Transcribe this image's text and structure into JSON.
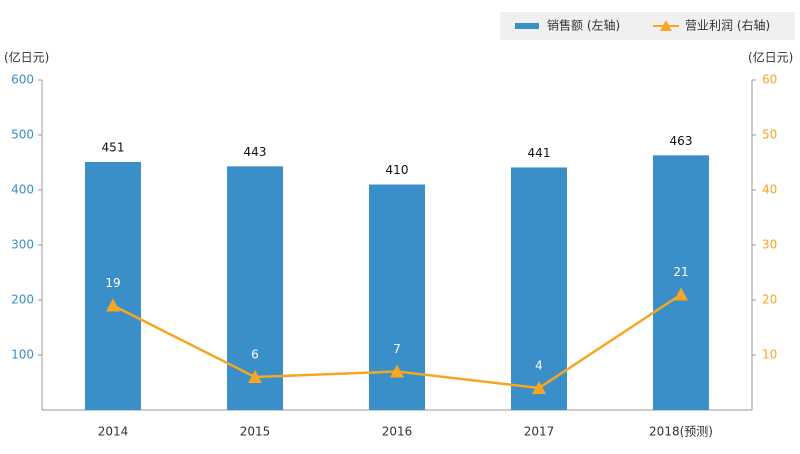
{
  "chart_data": {
    "type": "combo",
    "categories": [
      "2014",
      "2015",
      "2016",
      "2017",
      "2018(预测)"
    ],
    "series": [
      {
        "name": "销售额 (左轴)",
        "type": "bar",
        "color": "#3a8fc8",
        "values": [
          451,
          443,
          410,
          441,
          463
        ]
      },
      {
        "name": "营业利润 (右轴)",
        "type": "line",
        "axis": "y2",
        "color": "#f5a623",
        "values": [
          19,
          6,
          7,
          4,
          21
        ]
      }
    ],
    "ylabel": "(亿日元)",
    "y2label": "(亿日元)",
    "ylim": [
      0,
      600
    ],
    "yticks": [
      100,
      200,
      300,
      400,
      500,
      600
    ],
    "y2lim": [
      0,
      60
    ],
    "y2ticks": [
      10,
      20,
      30,
      40,
      50,
      60
    ]
  }
}
